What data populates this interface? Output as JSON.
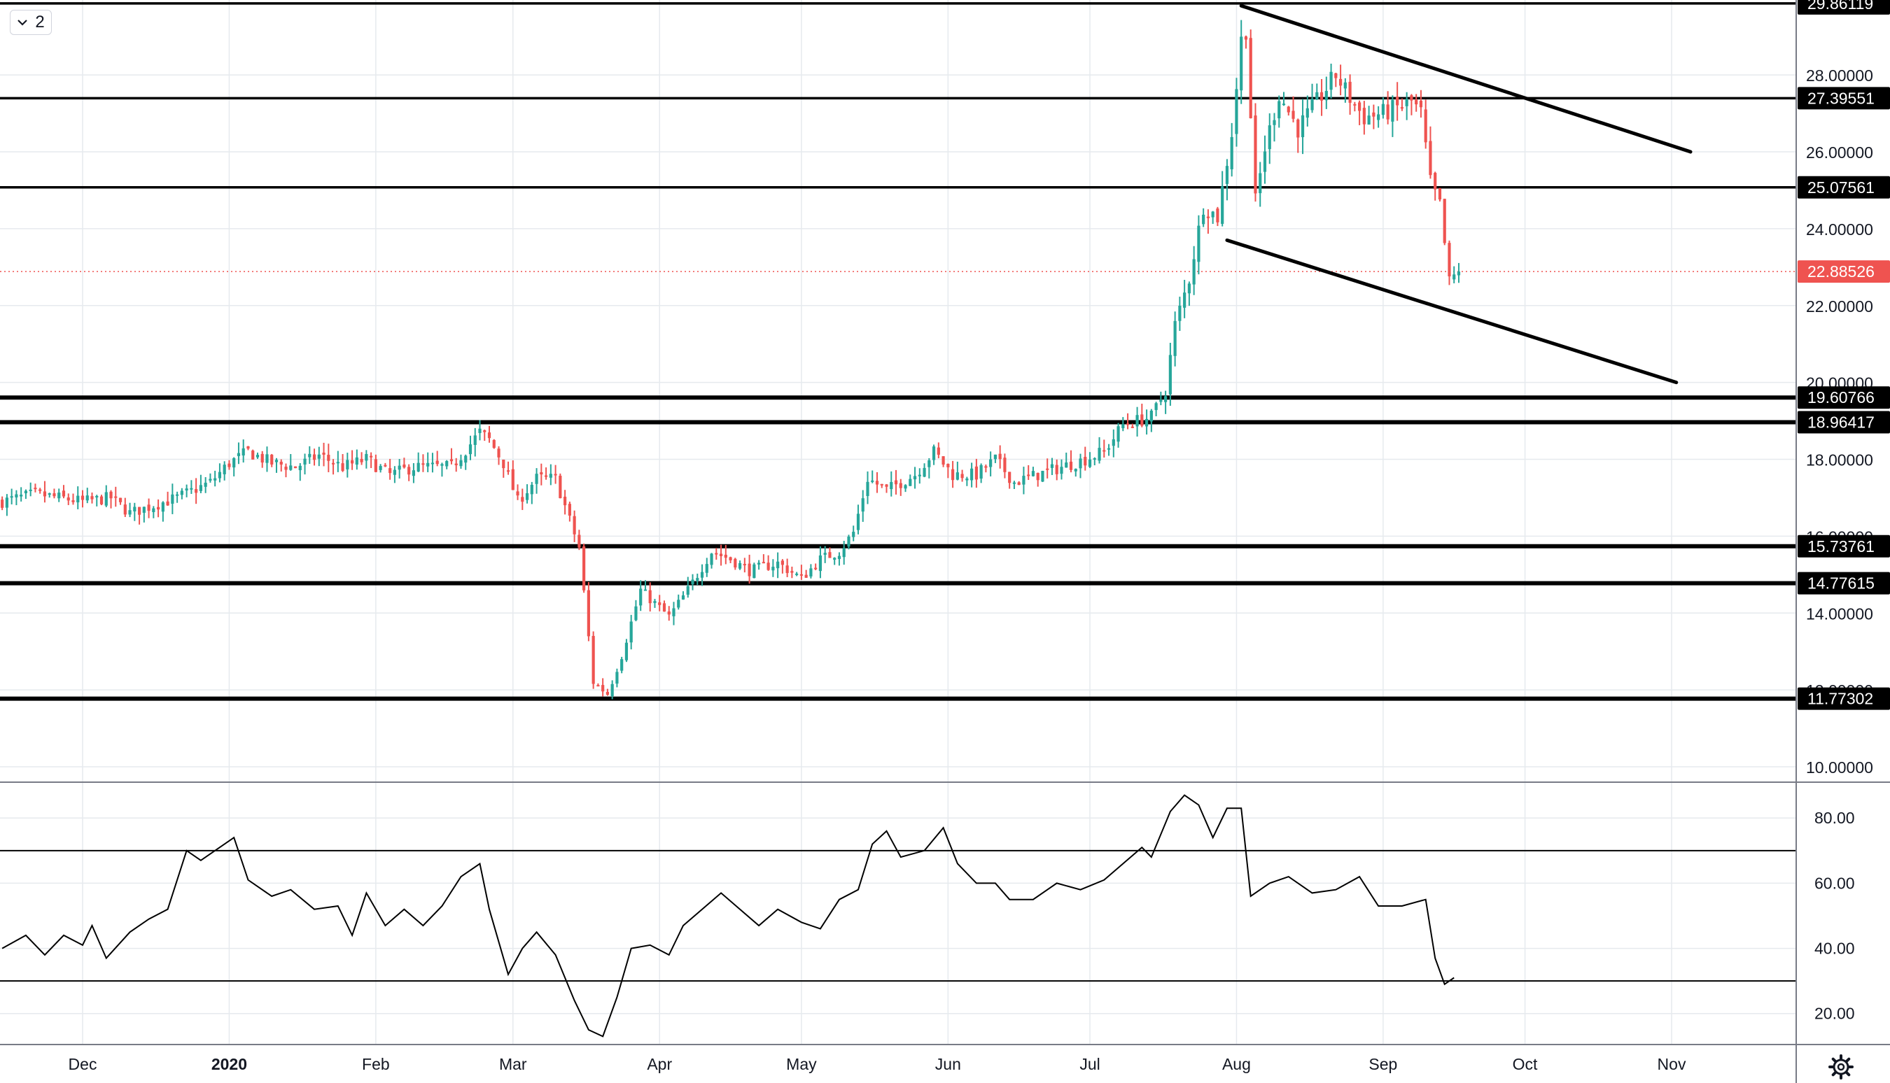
{
  "toolbar": {
    "interval_label": "2",
    "interval_icon": "chevron-down-icon"
  },
  "settings": {
    "icon": "gear-icon"
  },
  "colors": {
    "up": "#26a69a",
    "down": "#ef5350",
    "grid": "#e6eaee",
    "line": "#000000",
    "last": "#ef5350"
  },
  "chart_data": [
    {
      "type": "candlestick",
      "title": "",
      "x": [
        "Dec",
        "2020",
        "Feb",
        "Mar",
        "Apr",
        "May",
        "Jun",
        "Jul",
        "Aug",
        "Sep",
        "Oct",
        "Nov"
      ],
      "x_ticks": [
        {
          "label": "Dec",
          "day": 0
        },
        {
          "label": "2020",
          "day": 31
        },
        {
          "label": "Feb",
          "day": 62
        },
        {
          "label": "Mar",
          "day": 91
        },
        {
          "label": "Apr",
          "day": 122
        },
        {
          "label": "May",
          "day": 152
        },
        {
          "label": "Jun",
          "day": 183
        },
        {
          "label": "Jul",
          "day": 213
        },
        {
          "label": "Aug",
          "day": 244
        },
        {
          "label": "Sep",
          "day": 275
        },
        {
          "label": "Oct",
          "day": 305
        },
        {
          "label": "Nov",
          "day": 336
        }
      ],
      "ylim": [
        9.6,
        29.95
      ],
      "y_ticks": [
        "10.00000",
        "12.00000",
        "14.00000",
        "16.00000",
        "18.00000",
        "20.00000",
        "22.00000",
        "24.00000",
        "26.00000",
        "28.00000"
      ],
      "horizontal_levels": [
        {
          "value": 29.86119,
          "label": "29.86119",
          "style": "normal"
        },
        {
          "value": 27.39551,
          "label": "27.39551",
          "style": "normal"
        },
        {
          "value": 25.07561,
          "label": "25.07561",
          "style": "normal"
        },
        {
          "value": 19.60766,
          "label": "19.60766",
          "style": "bold"
        },
        {
          "value": 18.96417,
          "label": "18.96417",
          "style": "bold"
        },
        {
          "value": 15.73761,
          "label": "15.73761",
          "style": "bold"
        },
        {
          "value": 14.77615,
          "label": "14.77615",
          "style": "bold"
        },
        {
          "value": 11.77302,
          "label": "11.77302",
          "style": "bold"
        }
      ],
      "last_price": {
        "value": 22.88526,
        "label": "22.88526"
      },
      "trendlines": [
        {
          "from": {
            "day": 245,
            "value": 29.8
          },
          "to": {
            "day": 340,
            "value": 26.0
          }
        },
        {
          "from": {
            "day": 242,
            "value": 23.7
          },
          "to": {
            "day": 337,
            "value": 20.0
          }
        }
      ],
      "price_path": [
        {
          "day": -17,
          "value": 16.9
        },
        {
          "day": -10,
          "value": 17.1
        },
        {
          "day": 0,
          "value": 16.9
        },
        {
          "day": 6,
          "value": 17.0
        },
        {
          "day": 10,
          "value": 16.6
        },
        {
          "day": 20,
          "value": 17.0
        },
        {
          "day": 27,
          "value": 17.4
        },
        {
          "day": 31,
          "value": 17.9
        },
        {
          "day": 35,
          "value": 18.2
        },
        {
          "day": 40,
          "value": 17.9
        },
        {
          "day": 45,
          "value": 17.8
        },
        {
          "day": 50,
          "value": 18.1
        },
        {
          "day": 55,
          "value": 17.8
        },
        {
          "day": 60,
          "value": 18.0
        },
        {
          "day": 65,
          "value": 17.6
        },
        {
          "day": 70,
          "value": 17.8
        },
        {
          "day": 78,
          "value": 17.8
        },
        {
          "day": 84,
          "value": 18.7
        },
        {
          "day": 86,
          "value": 18.5
        },
        {
          "day": 89,
          "value": 17.9
        },
        {
          "day": 92,
          "value": 16.9
        },
        {
          "day": 96,
          "value": 17.5
        },
        {
          "day": 100,
          "value": 17.5
        },
        {
          "day": 105,
          "value": 15.7
        },
        {
          "day": 108,
          "value": 12.2
        },
        {
          "day": 111,
          "value": 11.9
        },
        {
          "day": 114,
          "value": 12.9
        },
        {
          "day": 118,
          "value": 14.6
        },
        {
          "day": 124,
          "value": 13.9
        },
        {
          "day": 128,
          "value": 14.6
        },
        {
          "day": 133,
          "value": 15.6
        },
        {
          "day": 137,
          "value": 15.4
        },
        {
          "day": 141,
          "value": 15.1
        },
        {
          "day": 147,
          "value": 15.3
        },
        {
          "day": 152,
          "value": 14.9
        },
        {
          "day": 156,
          "value": 15.4
        },
        {
          "day": 160,
          "value": 15.6
        },
        {
          "day": 163,
          "value": 16.1
        },
        {
          "day": 166,
          "value": 17.5
        },
        {
          "day": 170,
          "value": 17.2
        },
        {
          "day": 176,
          "value": 17.6
        },
        {
          "day": 180,
          "value": 18.2
        },
        {
          "day": 184,
          "value": 17.6
        },
        {
          "day": 189,
          "value": 17.6
        },
        {
          "day": 193,
          "value": 18.0
        },
        {
          "day": 197,
          "value": 17.4
        },
        {
          "day": 202,
          "value": 17.6
        },
        {
          "day": 207,
          "value": 17.8
        },
        {
          "day": 212,
          "value": 18.0
        },
        {
          "day": 216,
          "value": 18.2
        },
        {
          "day": 220,
          "value": 18.9
        },
        {
          "day": 226,
          "value": 19.1
        },
        {
          "day": 229,
          "value": 19.8
        },
        {
          "day": 231,
          "value": 21.5
        },
        {
          "day": 234,
          "value": 22.7
        },
        {
          "day": 237,
          "value": 24.6
        },
        {
          "day": 240,
          "value": 24.3
        },
        {
          "day": 243,
          "value": 26.5
        },
        {
          "day": 245,
          "value": 28.9
        },
        {
          "day": 246,
          "value": 29.2
        },
        {
          "day": 248,
          "value": 24.7
        },
        {
          "day": 250,
          "value": 26.1
        },
        {
          "day": 253,
          "value": 27.5
        },
        {
          "day": 257,
          "value": 26.6
        },
        {
          "day": 261,
          "value": 27.3
        },
        {
          "day": 265,
          "value": 28.0
        },
        {
          "day": 268,
          "value": 27.4
        },
        {
          "day": 271,
          "value": 26.9
        },
        {
          "day": 275,
          "value": 27.0
        },
        {
          "day": 281,
          "value": 27.3
        },
        {
          "day": 283,
          "value": 27.0
        },
        {
          "day": 285,
          "value": 25.2
        },
        {
          "day": 287,
          "value": 24.6
        },
        {
          "day": 289,
          "value": 22.6
        },
        {
          "day": 291,
          "value": 22.9
        }
      ]
    },
    {
      "type": "line",
      "title": "",
      "ylim": [
        10.5,
        91
      ],
      "y_ticks": [
        "20.00",
        "40.00",
        "60.00",
        "80.00"
      ],
      "bands": [
        30,
        70
      ],
      "series": [
        {
          "points": [
            {
              "day": -17,
              "value": 40
            },
            {
              "day": -12,
              "value": 44
            },
            {
              "day": -8,
              "value": 38
            },
            {
              "day": -4,
              "value": 44
            },
            {
              "day": 0,
              "value": 41
            },
            {
              "day": 2,
              "value": 47
            },
            {
              "day": 5,
              "value": 37
            },
            {
              "day": 10,
              "value": 45
            },
            {
              "day": 14,
              "value": 49
            },
            {
              "day": 18,
              "value": 52
            },
            {
              "day": 22,
              "value": 70
            },
            {
              "day": 25,
              "value": 67
            },
            {
              "day": 28,
              "value": 70
            },
            {
              "day": 32,
              "value": 74
            },
            {
              "day": 35,
              "value": 61
            },
            {
              "day": 40,
              "value": 56
            },
            {
              "day": 44,
              "value": 58
            },
            {
              "day": 49,
              "value": 52
            },
            {
              "day": 54,
              "value": 53
            },
            {
              "day": 57,
              "value": 44
            },
            {
              "day": 60,
              "value": 57
            },
            {
              "day": 64,
              "value": 47
            },
            {
              "day": 68,
              "value": 52
            },
            {
              "day": 72,
              "value": 47
            },
            {
              "day": 76,
              "value": 53
            },
            {
              "day": 80,
              "value": 62
            },
            {
              "day": 84,
              "value": 66
            },
            {
              "day": 86,
              "value": 52
            },
            {
              "day": 90,
              "value": 32
            },
            {
              "day": 93,
              "value": 40
            },
            {
              "day": 96,
              "value": 45
            },
            {
              "day": 100,
              "value": 38
            },
            {
              "day": 104,
              "value": 24
            },
            {
              "day": 107,
              "value": 15
            },
            {
              "day": 110,
              "value": 13
            },
            {
              "day": 113,
              "value": 25
            },
            {
              "day": 116,
              "value": 40
            },
            {
              "day": 120,
              "value": 41
            },
            {
              "day": 124,
              "value": 38
            },
            {
              "day": 127,
              "value": 47
            },
            {
              "day": 131,
              "value": 52
            },
            {
              "day": 135,
              "value": 57
            },
            {
              "day": 139,
              "value": 52
            },
            {
              "day": 143,
              "value": 47
            },
            {
              "day": 147,
              "value": 52
            },
            {
              "day": 152,
              "value": 48
            },
            {
              "day": 156,
              "value": 46
            },
            {
              "day": 160,
              "value": 55
            },
            {
              "day": 164,
              "value": 58
            },
            {
              "day": 167,
              "value": 72
            },
            {
              "day": 170,
              "value": 76
            },
            {
              "day": 173,
              "value": 68
            },
            {
              "day": 178,
              "value": 70
            },
            {
              "day": 182,
              "value": 77
            },
            {
              "day": 185,
              "value": 66
            },
            {
              "day": 189,
              "value": 60
            },
            {
              "day": 193,
              "value": 60
            },
            {
              "day": 196,
              "value": 55
            },
            {
              "day": 201,
              "value": 55
            },
            {
              "day": 206,
              "value": 60
            },
            {
              "day": 211,
              "value": 58
            },
            {
              "day": 216,
              "value": 61
            },
            {
              "day": 220,
              "value": 66
            },
            {
              "day": 224,
              "value": 71
            },
            {
              "day": 226,
              "value": 68
            },
            {
              "day": 230,
              "value": 82
            },
            {
              "day": 233,
              "value": 87
            },
            {
              "day": 236,
              "value": 84
            },
            {
              "day": 239,
              "value": 74
            },
            {
              "day": 242,
              "value": 83
            },
            {
              "day": 245,
              "value": 83
            },
            {
              "day": 247,
              "value": 56
            },
            {
              "day": 251,
              "value": 60
            },
            {
              "day": 255,
              "value": 62
            },
            {
              "day": 260,
              "value": 57
            },
            {
              "day": 265,
              "value": 58
            },
            {
              "day": 270,
              "value": 62
            },
            {
              "day": 274,
              "value": 53
            },
            {
              "day": 279,
              "value": 53
            },
            {
              "day": 284,
              "value": 55
            },
            {
              "day": 286,
              "value": 37
            },
            {
              "day": 288,
              "value": 29
            },
            {
              "day": 290,
              "value": 31
            }
          ]
        }
      ]
    }
  ]
}
